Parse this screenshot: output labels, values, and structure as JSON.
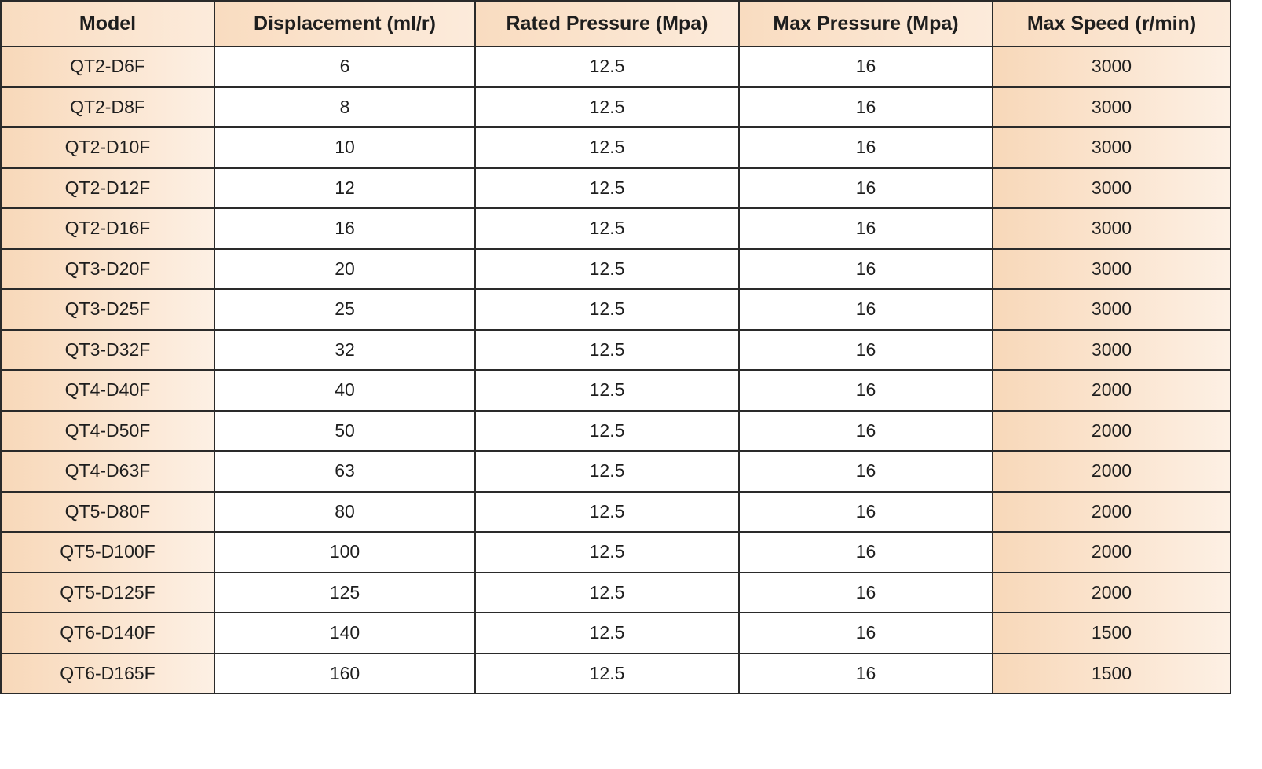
{
  "table": {
    "header": [
      "Model",
      "Displacement (ml/r)",
      "Rated Pressure (Mpa)",
      "Max Pressure (Mpa)",
      "Max Speed (r/min)"
    ],
    "rows": [
      [
        "QT2-D6F",
        "6",
        "12.5",
        "16",
        "3000"
      ],
      [
        "QT2-D8F",
        "8",
        "12.5",
        "16",
        "3000"
      ],
      [
        "QT2-D10F",
        "10",
        "12.5",
        "16",
        "3000"
      ],
      [
        "QT2-D12F",
        "12",
        "12.5",
        "16",
        "3000"
      ],
      [
        "QT2-D16F",
        "16",
        "12.5",
        "16",
        "3000"
      ],
      [
        "QT3-D20F",
        "20",
        "12.5",
        "16",
        "3000"
      ],
      [
        "QT3-D25F",
        "25",
        "12.5",
        "16",
        "3000"
      ],
      [
        "QT3-D32F",
        "32",
        "12.5",
        "16",
        "3000"
      ],
      [
        "QT4-D40F",
        "40",
        "12.5",
        "16",
        "2000"
      ],
      [
        "QT4-D50F",
        "50",
        "12.5",
        "16",
        "2000"
      ],
      [
        "QT4-D63F",
        "63",
        "12.5",
        "16",
        "2000"
      ],
      [
        "QT5-D80F",
        "80",
        "12.5",
        "16",
        "2000"
      ],
      [
        "QT5-D100F",
        "100",
        "12.5",
        "16",
        "2000"
      ],
      [
        "QT5-D125F",
        "125",
        "12.5",
        "16",
        "2000"
      ],
      [
        "QT6-D140F",
        "140",
        "12.5",
        "16",
        "1500"
      ],
      [
        "QT6-D165F",
        "160",
        "12.5",
        "16",
        "1500"
      ]
    ]
  }
}
